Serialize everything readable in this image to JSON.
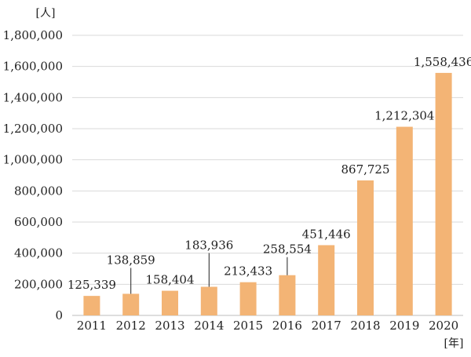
{
  "chart_data": {
    "type": "bar",
    "title": "",
    "xlabel": "",
    "ylabel": "",
    "y_unit": "[人]",
    "x_unit": "[年]",
    "categories": [
      "2011",
      "2012",
      "2013",
      "2014",
      "2015",
      "2016",
      "2017",
      "2018",
      "2019",
      "2020"
    ],
    "values": [
      125339,
      138859,
      158404,
      183936,
      213433,
      258554,
      451446,
      867725,
      1212304,
      1558436
    ],
    "value_labels": [
      "125,339",
      "138,859",
      "158,404",
      "183,936",
      "213,433",
      "258,554",
      "451,446",
      "867,725",
      "1,212,304",
      "1,558,436"
    ],
    "ylim": [
      0,
      1800000
    ],
    "yticks": [
      0,
      200000,
      400000,
      600000,
      800000,
      1000000,
      1200000,
      1400000,
      1600000,
      1800000
    ],
    "ytick_labels": [
      "0",
      "200,000",
      "400,000",
      "600,000",
      "800,000",
      "1,000,000",
      "1,200,000",
      "1,400,000",
      "1,600,000",
      "1,800,000"
    ],
    "grid": true,
    "legend": "none",
    "bar_color": "#F3B475"
  }
}
